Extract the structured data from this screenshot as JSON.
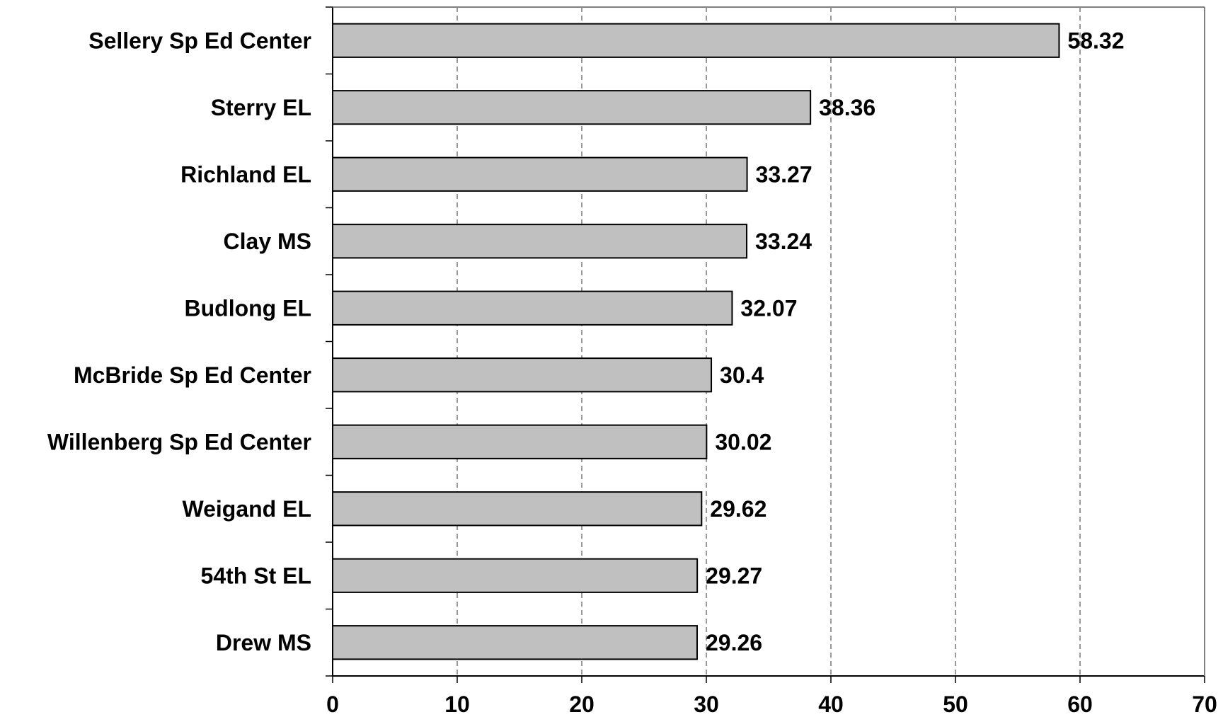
{
  "chart_data": {
    "type": "bar",
    "orientation": "horizontal",
    "categories": [
      "Sellery Sp Ed Center",
      "Sterry EL",
      "Richland EL",
      "Clay MS",
      "Budlong EL",
      "McBride Sp Ed Center",
      "Willenberg Sp Ed Center",
      "Weigand EL",
      "54th St EL",
      "Drew MS"
    ],
    "values": [
      58.32,
      38.36,
      33.27,
      33.24,
      32.07,
      30.4,
      30.02,
      29.62,
      29.27,
      29.26
    ],
    "value_labels": [
      "58.32",
      "38.36",
      "33.27",
      "33.24",
      "32.07",
      "30.4",
      "30.02",
      "29.62",
      "29.27",
      "29.26"
    ],
    "xlim": [
      0,
      70
    ],
    "xticks": [
      "0",
      "10",
      "20",
      "30",
      "40",
      "50",
      "60",
      "70"
    ],
    "grid": "vertical-dashed",
    "bar_color": "#c0c0c0",
    "title": "",
    "xlabel": "",
    "ylabel": ""
  }
}
